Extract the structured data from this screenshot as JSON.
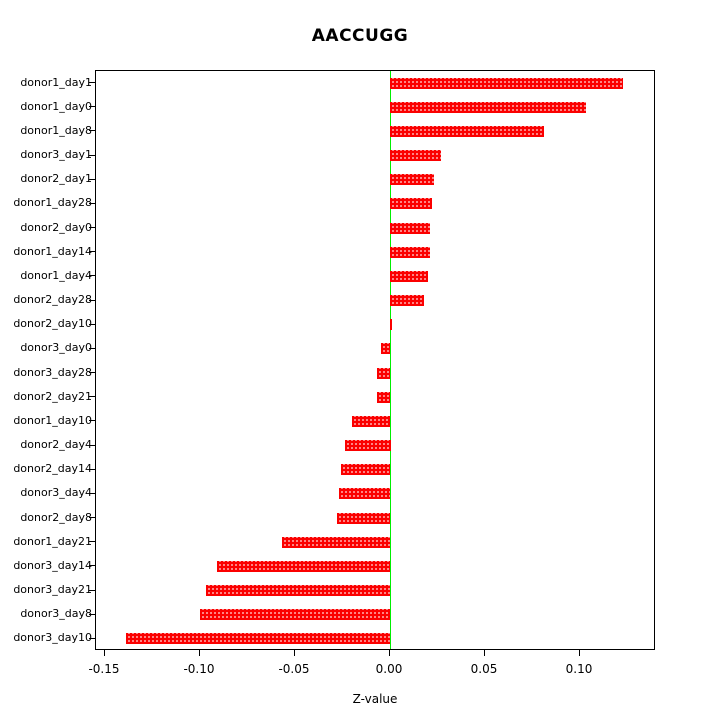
{
  "chart_data": {
    "type": "bar",
    "orientation": "horizontal",
    "title": "AACCUGG",
    "xlabel": "Z-value",
    "ylabel": "",
    "categories": [
      "donor1_day1",
      "donor1_day0",
      "donor1_day8",
      "donor3_day1",
      "donor2_day1",
      "donor1_day28",
      "donor2_day0",
      "donor1_day14",
      "donor1_day4",
      "donor2_day28",
      "donor2_day10",
      "donor3_day0",
      "donor3_day28",
      "donor2_day21",
      "donor1_day10",
      "donor2_day4",
      "donor2_day14",
      "donor3_day4",
      "donor2_day8",
      "donor1_day21",
      "donor3_day14",
      "donor3_day21",
      "donor3_day8",
      "donor3_day10"
    ],
    "values": [
      0.123,
      0.103,
      0.081,
      0.027,
      0.023,
      0.022,
      0.021,
      0.021,
      0.02,
      0.018,
      0.001,
      -0.005,
      -0.007,
      -0.007,
      -0.02,
      -0.024,
      -0.026,
      -0.027,
      -0.028,
      -0.057,
      -0.091,
      -0.097,
      -0.1,
      -0.139
    ],
    "xlim": [
      -0.155,
      0.14
    ],
    "xticks": [
      -0.15,
      -0.1,
      -0.05,
      0.0,
      0.05,
      0.1
    ],
    "xtick_labels": [
      "-0.15",
      "-0.10",
      "-0.05",
      "0.00",
      "0.05",
      "0.10"
    ],
    "grid": false,
    "legend": null,
    "bar_color": "#fb0000",
    "zero_line_color": "#00ee00"
  }
}
